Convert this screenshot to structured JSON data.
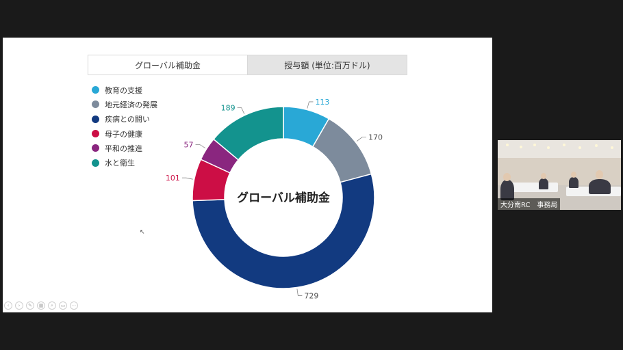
{
  "tabs": [
    {
      "label": "グローバル補助金",
      "active": true
    },
    {
      "label": "授与額 (単位:百万ドル)",
      "active": false
    }
  ],
  "legend": [
    {
      "label": "教育の支援",
      "color": "#29a8d6"
    },
    {
      "label": "地元経済の発展",
      "color": "#7d8b9c"
    },
    {
      "label": "疾病との闘い",
      "color": "#123a80"
    },
    {
      "label": "母子の健康",
      "color": "#cc0e45"
    },
    {
      "label": "平和の推進",
      "color": "#8a267f"
    },
    {
      "label": "水と衛生",
      "color": "#13938e"
    }
  ],
  "chart_data": {
    "type": "pie",
    "center_label": "グローバル補助金",
    "series": [
      {
        "name": "教育の支援",
        "value": 113,
        "color": "#29a8d6"
      },
      {
        "name": "地元経済の発展",
        "value": 170,
        "color": "#7d8b9c"
      },
      {
        "name": "疾病との闘い",
        "value": 729,
        "color": "#123a80"
      },
      {
        "name": "母子の健康",
        "value": 101,
        "color": "#cc0e45"
      },
      {
        "name": "平和の推進",
        "value": 57,
        "color": "#8a267f"
      },
      {
        "name": "水と衛生",
        "value": 189,
        "color": "#13938e"
      }
    ]
  },
  "video": {
    "label": "大分南RC　事務局"
  }
}
